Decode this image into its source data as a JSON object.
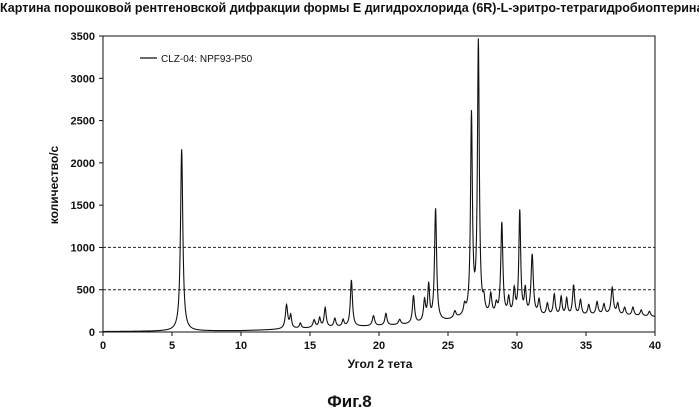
{
  "chart_data": {
    "type": "line",
    "title": "Картина порошковой рентгеновской дифракции формы Е дигидрохлорида (6R)-L-эритро-тетрагидробиоптерина",
    "xlabel": "Угол 2 тета",
    "ylabel": "количество/с",
    "xlim": [
      0,
      40
    ],
    "ylim": [
      0,
      3500
    ],
    "x_ticks": [
      "0",
      "5",
      "10",
      "15",
      "20",
      "25",
      "30",
      "35",
      "40"
    ],
    "y_ticks": [
      "0",
      "500",
      "1000",
      "1500",
      "2000",
      "2500",
      "3000",
      "3500"
    ],
    "reference_lines": [
      500,
      1000
    ],
    "grid": false,
    "legend_position": "top-left",
    "series": [
      {
        "name": "CLZ-04: NPF93-P50",
        "color": "#111111",
        "baseline": [
          [
            0,
            5
          ],
          [
            5,
            10
          ],
          [
            10,
            15
          ],
          [
            12,
            25
          ],
          [
            15,
            45
          ],
          [
            18,
            60
          ],
          [
            20,
            70
          ],
          [
            22,
            85
          ],
          [
            24,
            110
          ],
          [
            25,
            130
          ],
          [
            26,
            160
          ],
          [
            27,
            190
          ],
          [
            28,
            170
          ],
          [
            30,
            160
          ],
          [
            32,
            180
          ],
          [
            34,
            180
          ],
          [
            36,
            200
          ],
          [
            38,
            190
          ],
          [
            40,
            180
          ]
        ],
        "peaks": [
          [
            5.7,
            2150,
            0.1
          ],
          [
            13.3,
            280,
            0.1
          ],
          [
            13.6,
            150,
            0.08
          ],
          [
            14.3,
            60,
            0.08
          ],
          [
            15.3,
            90,
            0.1
          ],
          [
            15.7,
            110,
            0.08
          ],
          [
            16.1,
            230,
            0.09
          ],
          [
            16.8,
            100,
            0.09
          ],
          [
            17.4,
            80,
            0.08
          ],
          [
            18.0,
            550,
            0.09
          ],
          [
            19.6,
            120,
            0.1
          ],
          [
            20.5,
            140,
            0.09
          ],
          [
            21.5,
            60,
            0.1
          ],
          [
            22.5,
            330,
            0.09
          ],
          [
            23.3,
            250,
            0.09
          ],
          [
            23.6,
            420,
            0.08
          ],
          [
            24.1,
            1330,
            0.09
          ],
          [
            25.5,
            80,
            0.1
          ],
          [
            26.2,
            110,
            0.09
          ],
          [
            26.7,
            2350,
            0.08
          ],
          [
            27.2,
            3210,
            0.08
          ],
          [
            27.6,
            140,
            0.08
          ],
          [
            28.1,
            240,
            0.09
          ],
          [
            28.5,
            120,
            0.09
          ],
          [
            28.9,
            1100,
            0.09
          ],
          [
            29.4,
            200,
            0.09
          ],
          [
            29.8,
            300,
            0.09
          ],
          [
            30.2,
            1240,
            0.08
          ],
          [
            30.6,
            300,
            0.08
          ],
          [
            31.1,
            720,
            0.1
          ],
          [
            31.6,
            180,
            0.09
          ],
          [
            32.2,
            140,
            0.09
          ],
          [
            32.7,
            250,
            0.09
          ],
          [
            33.2,
            220,
            0.08
          ],
          [
            33.6,
            200,
            0.08
          ],
          [
            34.1,
            360,
            0.09
          ],
          [
            34.6,
            180,
            0.09
          ],
          [
            35.2,
            120,
            0.09
          ],
          [
            35.8,
            150,
            0.09
          ],
          [
            36.3,
            120,
            0.09
          ],
          [
            36.9,
            320,
            0.1
          ],
          [
            37.3,
            130,
            0.09
          ],
          [
            37.8,
            90,
            0.09
          ],
          [
            38.4,
            100,
            0.09
          ],
          [
            39.0,
            70,
            0.09
          ],
          [
            39.6,
            60,
            0.09
          ]
        ]
      }
    ]
  },
  "figure_label": "Фиг.8"
}
